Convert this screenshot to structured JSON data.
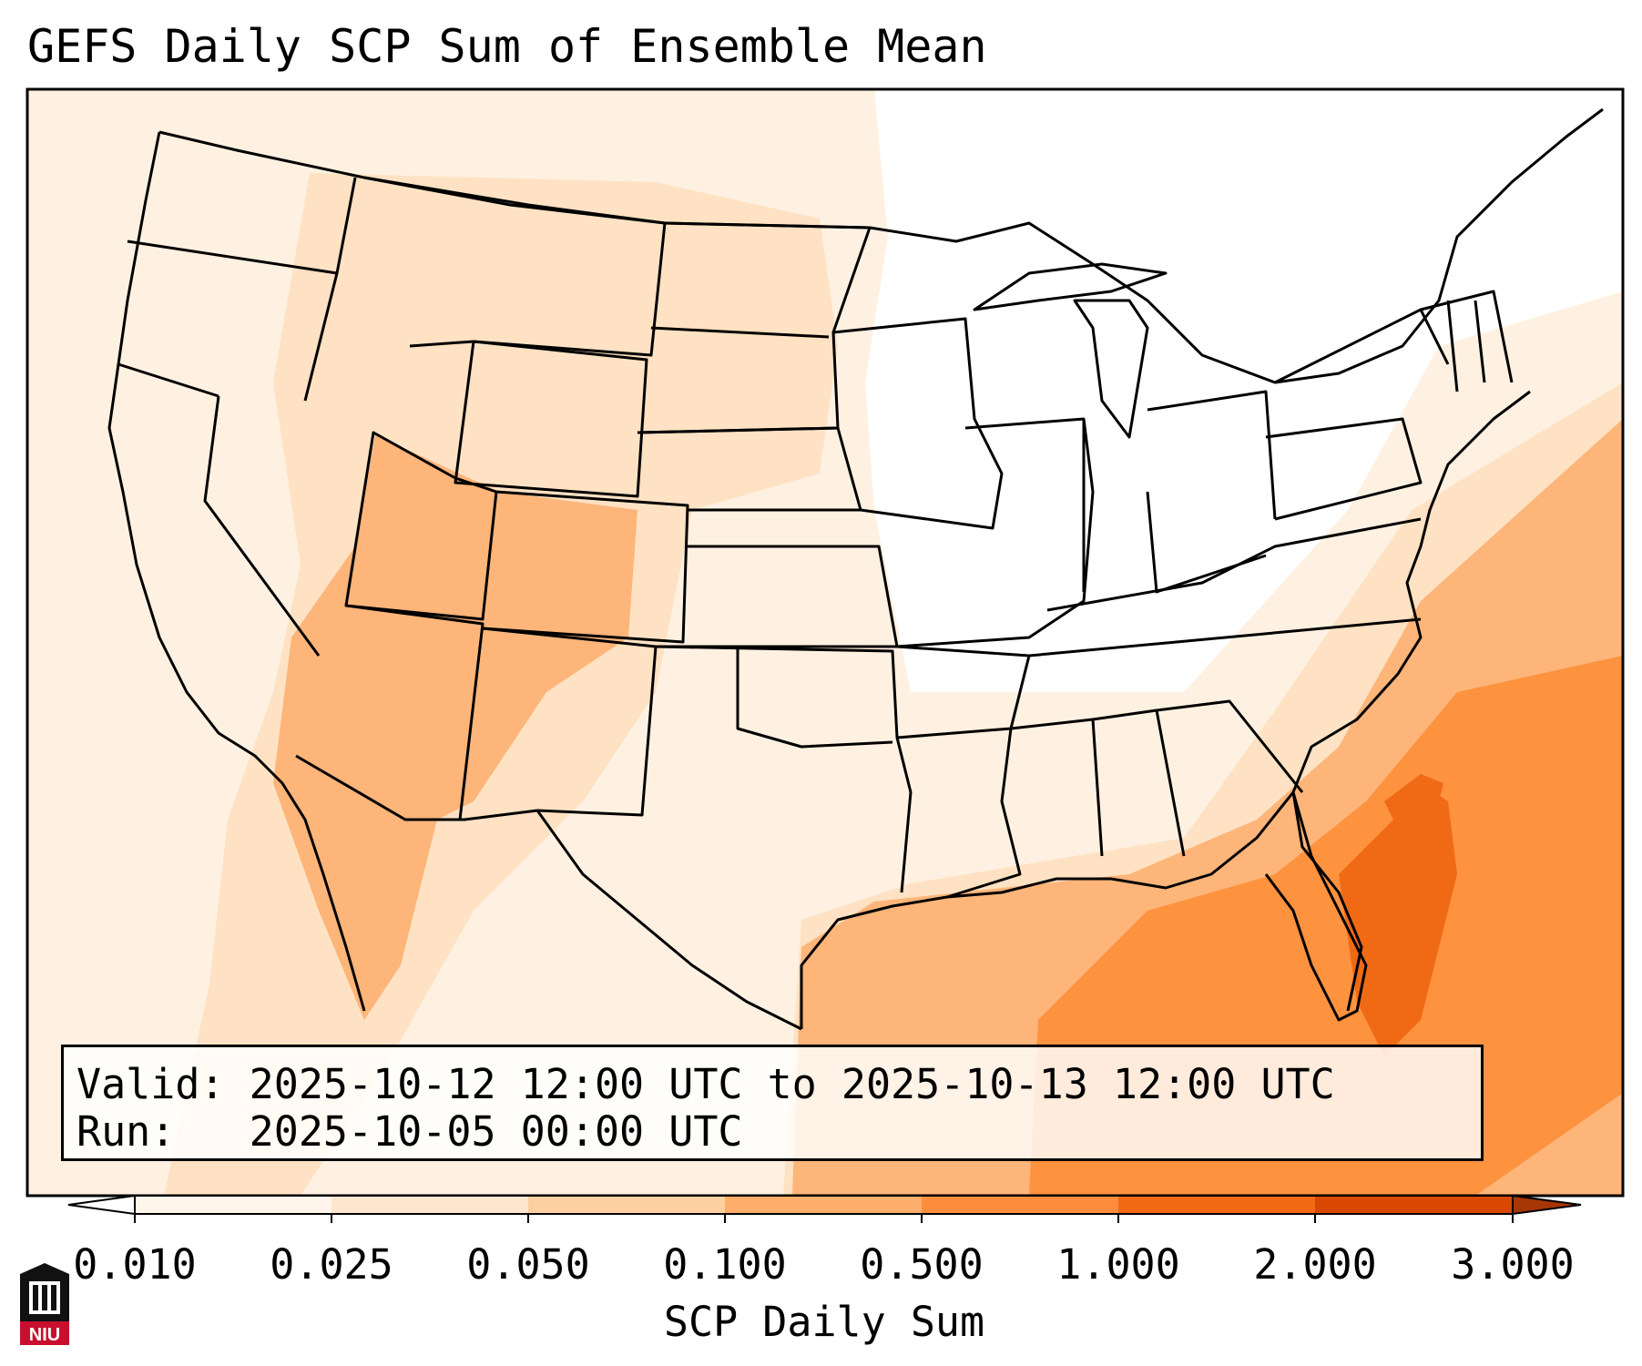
{
  "title": "GEFS Daily SCP Sum of Ensemble Mean",
  "info": {
    "valid_label": "Valid:",
    "valid_value": "2025-10-12 12:00 UTC to 2025-10-13 12:00 UTC",
    "run_label": "Run:",
    "run_value": "2025-10-05 00:00 UTC"
  },
  "colorbar": {
    "label": "SCP Daily Sum",
    "ticks": [
      "0.010",
      "0.025",
      "0.050",
      "0.100",
      "0.500",
      "1.000",
      "2.000",
      "3.000"
    ],
    "colors": [
      "#fff5eb",
      "#fee6ce",
      "#fdd0a2",
      "#fdae6b",
      "#fd8d3c",
      "#f16913",
      "#d94801",
      "#a63603"
    ],
    "extend": "both"
  },
  "map": {
    "region": "Continental United States",
    "projection": "Lambert Conformal",
    "field": "SCP daily sum (ensemble mean)",
    "max_region": "Gulf of Mexico / western Atlantic off Florida and the Carolinas",
    "max_level": "1.000-2.000"
  },
  "logo": {
    "text": "NIU",
    "icon": "niu-seal-icon"
  }
}
